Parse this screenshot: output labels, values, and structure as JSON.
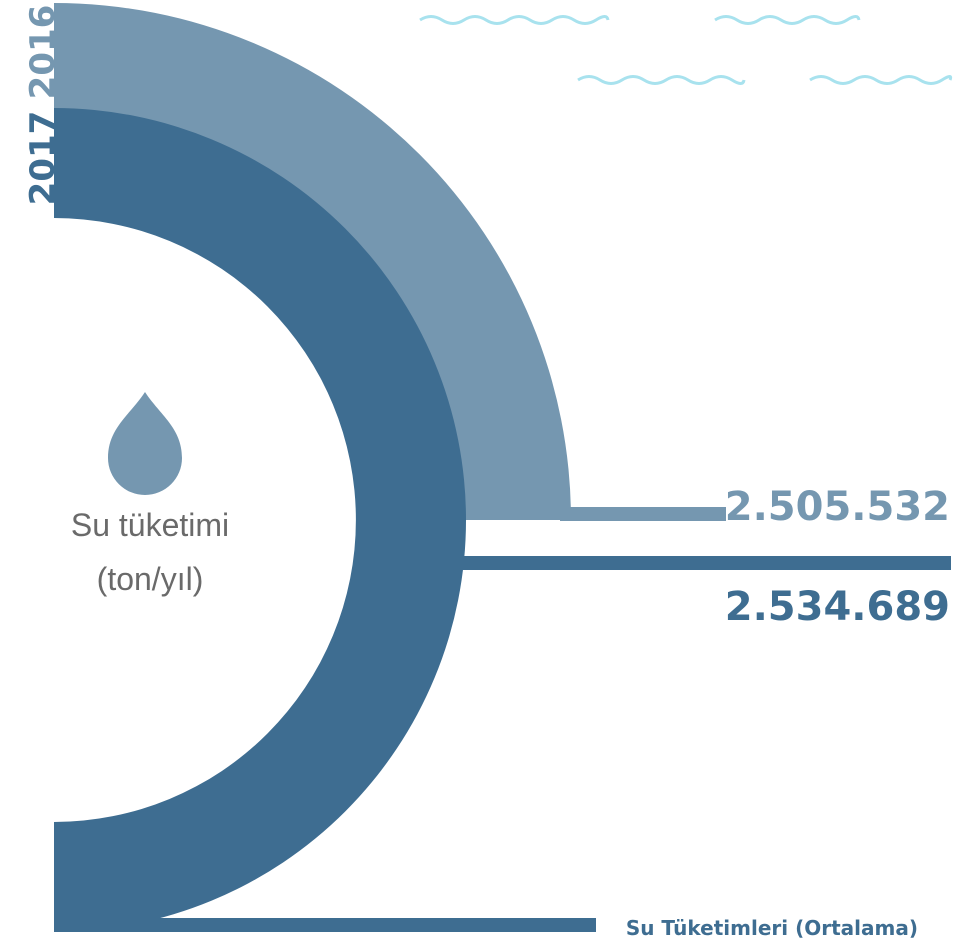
{
  "years": [
    "2016",
    "2017"
  ],
  "caption": [
    "Su tüketimi",
    "(ton/yıl)"
  ],
  "values": [
    "2.505.532",
    "2.534.689"
  ],
  "footer": "Su Tüketimleri (Ortalama)"
}
